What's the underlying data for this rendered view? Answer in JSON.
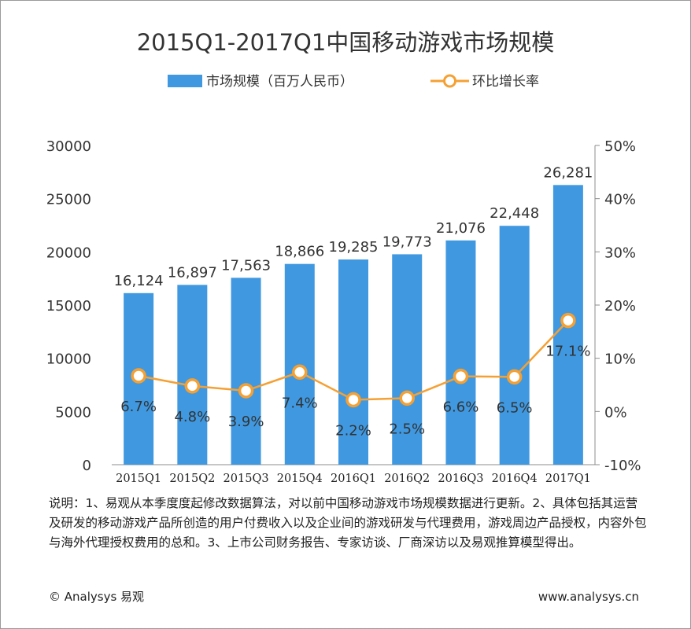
{
  "chart_data": {
    "type": "bar+line",
    "title": "2015Q1-2017Q1中国移动游戏市场规模",
    "categories": [
      "2015Q1",
      "2015Q2",
      "2015Q3",
      "2015Q4",
      "2016Q1",
      "2016Q2",
      "2016Q3",
      "2016Q4",
      "2017Q1"
    ],
    "bar_series": {
      "name": "市场规模（百万人民币）",
      "values": [
        16124,
        16897,
        17563,
        18866,
        19285,
        19773,
        21076,
        22448,
        26281
      ],
      "labels": [
        "16,124",
        "16,897",
        "17,563",
        "18,866",
        "19,285",
        "19,773",
        "21,076",
        "22,448",
        "26,281"
      ],
      "color": "#4099e0"
    },
    "line_series": {
      "name": "环比增长率",
      "values": [
        6.7,
        4.8,
        3.9,
        7.4,
        2.2,
        2.5,
        6.6,
        6.5,
        17.1
      ],
      "labels": [
        "6.7%",
        "4.8%",
        "3.9%",
        "7.4%",
        "2.2%",
        "2.5%",
        "6.6%",
        "6.5%",
        "17.1%"
      ],
      "color": "#f5a033"
    },
    "y_left": {
      "min": 0,
      "max": 30000,
      "ticks": [
        "0",
        "5000",
        "10000",
        "15000",
        "20000",
        "25000",
        "30000"
      ]
    },
    "y_right": {
      "min": -10,
      "max": 50,
      "ticks": [
        "-10%",
        "0%",
        "10%",
        "20%",
        "30%",
        "40%",
        "50%"
      ]
    },
    "legend_position": "top-center",
    "grid": false
  },
  "note": "说明：1、易观从本季度度起修改数据算法，对以前中国移动游戏市场规模数据进行更新。2、具体包括其运营及研发的移动游戏产品所创造的用户付费收入以及企业间的游戏研发与代理费用，游戏周边产品授权，内容外包与海外代理授权费用的总和。3、上市公司财务报告、专家访谈、厂商深访以及易观推算模型得出。",
  "footer": {
    "copyright": "© Analysys 易观",
    "website": "www.analysys.cn"
  }
}
